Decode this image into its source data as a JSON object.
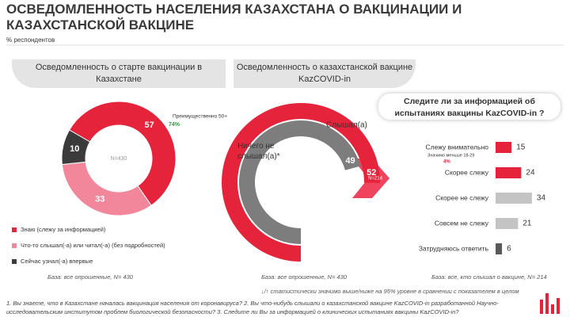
{
  "header": {
    "title": "ОСВЕДОМЛЕННОСТЬ НАСЕЛЕНИЯ КАЗАХСТАНА О ВАКЦИНАЦИИ И КАЗАХСТАНСКОЙ ВАКЦИНЕ",
    "subtitle": "% респондентов"
  },
  "chart_data": [
    {
      "type": "donut",
      "title": "Осведомленность о старте вакцинации в Казахстане",
      "categories": [
        "Знаю (слежу за информацией)",
        "Что-то слышал(-а) или читал(-а)  (без подробностей)",
        "Сейчас узнал(-а)  впервые"
      ],
      "values": [
        57,
        33,
        10
      ],
      "colors": [
        "#e5243b",
        "#f2869a",
        "#3b3b3b"
      ],
      "center_label": "N=430",
      "annotation": {
        "text": "Преимущественно 50+",
        "value": "74%"
      },
      "base": "База: все опрошенные, N= 430"
    },
    {
      "type": "radial_bar",
      "title": "Осведомленность о казахстанской вакцине KazCOVID-in",
      "series": [
        {
          "name": "Слышал(а)",
          "color": "#e5243b",
          "values": [
            52
          ]
        },
        {
          "name": "Ничего не слышал(а)*",
          "color": "#7d7d7d",
          "values": [
            49
          ]
        }
      ],
      "n_label": "N=214",
      "base": "База: все опрошенные, N= 430"
    },
    {
      "type": "hbar",
      "title": "Следите ли за информацией об испытаниях вакцины KazCOVID-in ?",
      "categories": [
        "Слежу внимательно",
        "Скорее слежу",
        "Скорее не слежу",
        "Совсем не слежу",
        "Затрудняюсь ответить"
      ],
      "values": [
        15,
        24,
        34,
        21,
        6
      ],
      "colors": [
        "#e5243b",
        "#e5243b",
        "#c4c4c4",
        "#c4c4c4",
        "#5a5a5a"
      ],
      "annotation": {
        "text": "Значимо меньше 18-29",
        "value": "4%"
      },
      "base": "База: все, кто слышал о вакцине, N= 214"
    }
  ],
  "footer": {
    "legend": "↓/↑ статистически значимо выше/ниже на 95% уровне в сравнении с показателем в целом",
    "note": "1. Вы знаете, что в Казахстане началась вакцинация населения от коронавируса? 2. Вы что-нибудь слышали о казахстанской вакцине KazCOVID-in разработанной Научно-исследовательским институтом проблем биологической безопасности? 3. Следите ли Вы за информацией о клинических испытаниях вакцины KazCOVID-in?"
  }
}
